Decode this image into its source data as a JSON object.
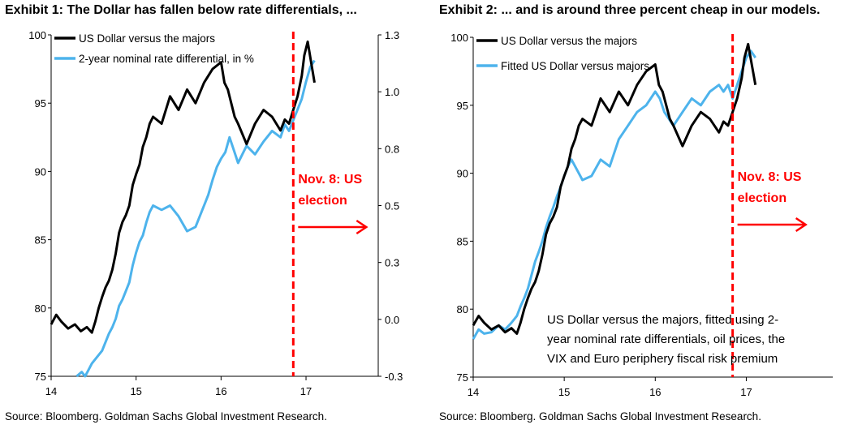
{
  "page": {
    "exhibit1_title": "Exhibit 1: The Dollar has fallen below rate differentials, ...",
    "exhibit2_title": "Exhibit 2: ... and is around three percent cheap in our models.",
    "source1": "Source: Bloomberg. Goldman Sachs Global Investment Research.",
    "source2": "Source: Bloomberg. Goldman Sachs Global Investment Research."
  },
  "chart_data": [
    {
      "type": "line",
      "title": "Exhibit 1: The Dollar has fallen below rate differentials, ...",
      "x_ticks": [
        "14",
        "15",
        "16",
        "17"
      ],
      "xlim": [
        14.0,
        17.85
      ],
      "y_left_ticks": [
        "75",
        "80",
        "85",
        "90",
        "95",
        "100"
      ],
      "y_left_lim": [
        75,
        100
      ],
      "y_right_ticks": [
        "-0.3",
        "0.0",
        "0.3",
        "0.5",
        "0.8",
        "1.0",
        "1.3"
      ],
      "y_right_lim": [
        -0.3,
        1.3
      ],
      "legend_position": "top-left",
      "grid": false,
      "colors": {
        "usd": "#000000",
        "rate": "#4db3ec",
        "election": "#ff0000"
      },
      "series": [
        {
          "name": "US Dollar versus the majors",
          "axis": "left",
          "x": [
            14.0,
            14.06,
            14.12,
            14.2,
            14.28,
            14.35,
            14.42,
            14.48,
            14.52,
            14.56,
            14.6,
            14.64,
            14.68,
            14.72,
            14.76,
            14.8,
            14.84,
            14.88,
            14.92,
            14.96,
            15.0,
            15.04,
            15.08,
            15.12,
            15.16,
            15.2,
            15.3,
            15.4,
            15.5,
            15.6,
            15.7,
            15.8,
            15.9,
            16.0,
            16.04,
            16.08,
            16.12,
            16.16,
            16.2,
            16.3,
            16.4,
            16.5,
            16.6,
            16.7,
            16.75,
            16.8,
            16.85,
            16.9,
            16.95,
            16.98,
            17.02,
            17.06,
            17.1
          ],
          "values": [
            78.8,
            79.5,
            79.0,
            78.5,
            78.8,
            78.3,
            78.6,
            78.2,
            79.0,
            80.0,
            80.8,
            81.5,
            82.0,
            82.8,
            84.0,
            85.5,
            86.3,
            86.8,
            87.5,
            89.0,
            89.8,
            90.5,
            91.8,
            92.5,
            93.5,
            94.0,
            93.5,
            95.5,
            94.5,
            96.0,
            95.0,
            96.5,
            97.5,
            98.0,
            96.5,
            96.0,
            95.0,
            94.0,
            93.5,
            92.0,
            93.5,
            94.5,
            94.0,
            93.0,
            93.8,
            93.5,
            94.5,
            95.5,
            97.0,
            98.5,
            99.5,
            98.0,
            96.5
          ]
        },
        {
          "name": "2-year nominal rate differential, in %",
          "axis": "right",
          "x": [
            14.3,
            14.36,
            14.4,
            14.44,
            14.48,
            14.52,
            14.56,
            14.6,
            14.64,
            14.68,
            14.72,
            14.76,
            14.8,
            14.84,
            14.88,
            14.92,
            14.96,
            15.0,
            15.04,
            15.08,
            15.12,
            15.16,
            15.2,
            15.3,
            15.4,
            15.5,
            15.6,
            15.7,
            15.8,
            15.85,
            15.9,
            15.95,
            16.0,
            16.05,
            16.1,
            16.15,
            16.2,
            16.3,
            16.4,
            16.5,
            16.6,
            16.7,
            16.75,
            16.8,
            16.85,
            16.9,
            16.95,
            17.0,
            17.05,
            17.1
          ],
          "values": [
            -0.3,
            -0.28,
            -0.3,
            -0.27,
            -0.24,
            -0.22,
            -0.2,
            -0.18,
            -0.14,
            -0.1,
            -0.07,
            -0.03,
            0.03,
            0.06,
            0.1,
            0.14,
            0.22,
            0.28,
            0.33,
            0.36,
            0.42,
            0.47,
            0.5,
            0.48,
            0.5,
            0.45,
            0.38,
            0.4,
            0.5,
            0.55,
            0.62,
            0.68,
            0.72,
            0.75,
            0.82,
            0.76,
            0.7,
            0.78,
            0.74,
            0.8,
            0.85,
            0.82,
            0.88,
            0.85,
            0.9,
            0.95,
            1.0,
            1.08,
            1.15,
            1.18
          ]
        }
      ],
      "annotations": [
        {
          "text": "Nov. 8: US",
          "x": 16.85
        },
        {
          "text": "election",
          "x": 16.85
        }
      ],
      "event_line_x": 16.85,
      "legend": [
        "US Dollar versus the majors",
        "2-year nominal rate differential, in %"
      ],
      "elements": {
        "event_annotation": "Nov. 8: US election"
      }
    },
    {
      "type": "line",
      "title": "Exhibit 2: ... and is around three percent cheap in our models.",
      "x_ticks": [
        "14",
        "15",
        "16",
        "17"
      ],
      "xlim": [
        14.0,
        17.95
      ],
      "y_left_ticks": [
        "75",
        "80",
        "85",
        "90",
        "95",
        "100"
      ],
      "y_left_lim": [
        75,
        100
      ],
      "legend_position": "top-left",
      "grid": false,
      "colors": {
        "usd": "#000000",
        "fitted": "#4db3ec",
        "election": "#ff0000"
      },
      "series": [
        {
          "name": "US Dollar versus the majors",
          "axis": "left",
          "x": [
            14.0,
            14.06,
            14.12,
            14.2,
            14.28,
            14.35,
            14.42,
            14.48,
            14.52,
            14.56,
            14.6,
            14.64,
            14.68,
            14.72,
            14.76,
            14.8,
            14.84,
            14.88,
            14.92,
            14.96,
            15.0,
            15.04,
            15.08,
            15.12,
            15.16,
            15.2,
            15.3,
            15.4,
            15.5,
            15.6,
            15.7,
            15.8,
            15.9,
            16.0,
            16.04,
            16.08,
            16.12,
            16.16,
            16.2,
            16.3,
            16.4,
            16.5,
            16.6,
            16.7,
            16.75,
            16.8,
            16.85,
            16.9,
            16.95,
            16.98,
            17.02,
            17.06,
            17.1
          ],
          "values": [
            78.8,
            79.5,
            79.0,
            78.5,
            78.8,
            78.3,
            78.6,
            78.2,
            79.0,
            80.0,
            80.8,
            81.5,
            82.0,
            82.8,
            84.0,
            85.5,
            86.3,
            86.8,
            87.5,
            89.0,
            89.8,
            90.5,
            91.8,
            92.5,
            93.5,
            94.0,
            93.5,
            95.5,
            94.5,
            96.0,
            95.0,
            96.5,
            97.5,
            98.0,
            96.5,
            96.0,
            95.0,
            94.0,
            93.5,
            92.0,
            93.5,
            94.5,
            94.0,
            93.0,
            93.8,
            93.5,
            94.5,
            95.5,
            97.0,
            98.5,
            99.5,
            98.0,
            96.5
          ]
        },
        {
          "name": "Fitted US Dollar versus majors",
          "axis": "left",
          "x": [
            14.0,
            14.06,
            14.12,
            14.2,
            14.28,
            14.35,
            14.42,
            14.48,
            14.52,
            14.56,
            14.6,
            14.64,
            14.68,
            14.72,
            14.76,
            14.8,
            14.84,
            14.88,
            14.92,
            14.96,
            15.0,
            15.04,
            15.08,
            15.12,
            15.16,
            15.2,
            15.3,
            15.4,
            15.5,
            15.6,
            15.7,
            15.8,
            15.9,
            16.0,
            16.05,
            16.1,
            16.15,
            16.2,
            16.3,
            16.4,
            16.5,
            16.6,
            16.7,
            16.75,
            16.8,
            16.85,
            16.9,
            16.95,
            17.0,
            17.05,
            17.1
          ],
          "values": [
            77.8,
            78.5,
            78.2,
            78.3,
            78.8,
            78.5,
            79.0,
            79.5,
            80.2,
            80.8,
            81.5,
            82.5,
            83.5,
            84.2,
            85.0,
            86.0,
            86.8,
            87.5,
            88.3,
            89.0,
            89.8,
            90.5,
            91.0,
            90.5,
            90.0,
            89.5,
            89.8,
            91.0,
            90.5,
            92.5,
            93.5,
            94.5,
            95.0,
            96.0,
            95.5,
            94.5,
            94.0,
            93.5,
            94.5,
            95.5,
            95.0,
            96.0,
            96.5,
            96.0,
            96.5,
            95.5,
            96.5,
            97.5,
            98.5,
            99.0,
            98.5
          ]
        }
      ],
      "event_line_x": 16.85,
      "legend": [
        "US Dollar versus the majors",
        "Fitted US Dollar versus majors"
      ],
      "annotations": [
        {
          "text": "Nov. 8: US"
        },
        {
          "text": "election"
        }
      ],
      "note_lines": [
        "US Dollar versus the majors, fitted using 2-",
        "year nominal rate differentials, oil prices, the",
        "VIX and Euro periphery fiscal risk premium"
      ]
    }
  ]
}
